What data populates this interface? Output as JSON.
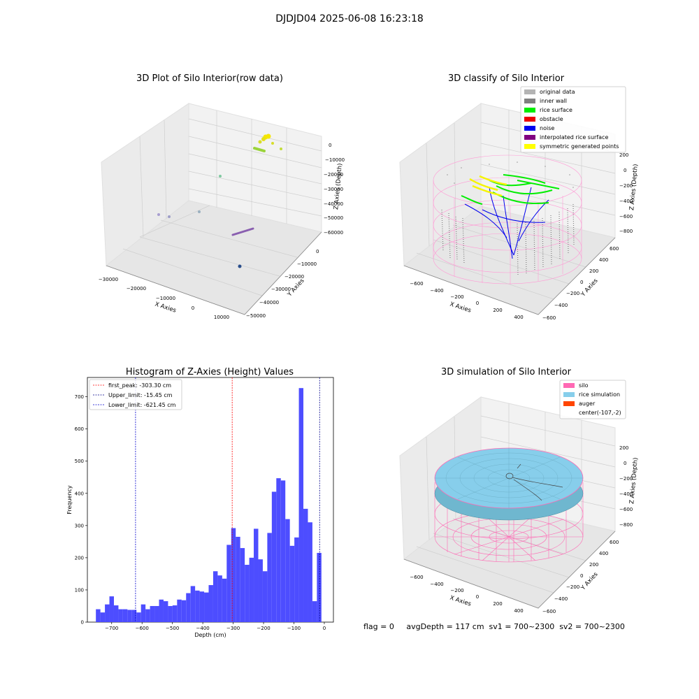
{
  "suptitle": "DJDJD04 2025-06-08 16:23:18",
  "panels": {
    "raw": {
      "title": "3D Plot of Silo Interior(row data)",
      "xlabel": "X Axies",
      "ylabel": "Y Axies",
      "zlabel": "Z Axies (Depth)",
      "xticks": [
        "−30000",
        "−20000",
        "−10000",
        "0",
        "10000"
      ],
      "yticks": [
        "0",
        "−10000",
        "−20000",
        "−30000",
        "−40000",
        "−50000"
      ],
      "zticks": [
        "0",
        "−10000",
        "−20000",
        "−30000",
        "−40000",
        "−50000",
        "−60000"
      ]
    },
    "classify": {
      "title": "3D classify of Silo Interior",
      "xlabel": "X Axies",
      "ylabel": "Y Axies",
      "zlabel": "Z Axies (Depth)",
      "xticks": [
        "−600",
        "−400",
        "−200",
        "0",
        "200",
        "400"
      ],
      "yticks": [
        "600",
        "400",
        "200",
        "0",
        "−200",
        "−400",
        "−600"
      ],
      "zticks": [
        "200",
        "0",
        "−200",
        "−400",
        "−600",
        "−800"
      ],
      "legend": [
        {
          "label": "original data",
          "color": "#b4b4b4"
        },
        {
          "label": "inner wall",
          "color": "#808080"
        },
        {
          "label": "rice surface",
          "color": "#00ee00"
        },
        {
          "label": "obstacle",
          "color": "#ee0000"
        },
        {
          "label": "noise",
          "color": "#0000ee"
        },
        {
          "label": "interpolated rice surface",
          "color": "#800080"
        },
        {
          "label": "symmetric generated points",
          "color": "#ffff00"
        }
      ]
    },
    "histogram": {
      "title": "Histogram of Z-Axies (Height) Values",
      "xlabel": "Depth (cm)",
      "ylabel": "Frequency",
      "legend": [
        {
          "label": "first_peak: -303.30 cm",
          "color": "#ff0000"
        },
        {
          "label": "Upper_limit: -15.45 cm",
          "color": "#00008b"
        },
        {
          "label": "Lower_limit: -621.45 cm",
          "color": "#0000cd"
        }
      ]
    },
    "simulation": {
      "title": "3D simulation of Silo Interior",
      "xlabel": "X Axies",
      "ylabel": "Y Axies",
      "zlabel": "Z Axies (Depth)",
      "xticks": [
        "−600",
        "−400",
        "−200",
        "0",
        "200",
        "400"
      ],
      "yticks": [
        "600",
        "400",
        "200",
        "0",
        "−200",
        "−400",
        "−600"
      ],
      "zticks": [
        "200",
        "0",
        "−200",
        "−400",
        "−600",
        "−800"
      ],
      "legend": [
        {
          "label": "silo",
          "color": "#ff69b4"
        },
        {
          "label": "rice simulation",
          "color": "#87ceeb"
        },
        {
          "label": "auger",
          "color": "#ff4500"
        },
        {
          "label": "center(-107,-2)",
          "color": ""
        }
      ],
      "status_text": "flag = 0     avgDepth = 117 cm  sv1 = 700~2300  sv2 = 700~2300"
    }
  },
  "chart_data": {
    "type": "bar",
    "title": "Histogram of Z-Axies (Height) Values",
    "xlabel": "Depth (cm)",
    "ylabel": "Frequency",
    "xlim": [
      -780,
      30
    ],
    "ylim": [
      0,
      760
    ],
    "xticks": [
      -700,
      -600,
      -500,
      -400,
      -300,
      -200,
      -100,
      0
    ],
    "yticks": [
      0,
      100,
      200,
      300,
      400,
      500,
      600,
      700
    ],
    "bin_start": -752,
    "bin_width": 14.85,
    "values": [
      40,
      30,
      55,
      80,
      52,
      40,
      40,
      38,
      38,
      30,
      55,
      40,
      50,
      50,
      70,
      65,
      50,
      52,
      70,
      68,
      90,
      112,
      98,
      95,
      92,
      115,
      158,
      145,
      135,
      240,
      292,
      265,
      230,
      178,
      200,
      290,
      195,
      158,
      277,
      405,
      447,
      440,
      320,
      237,
      263,
      727,
      352,
      310,
      65,
      215
    ],
    "reference_lines": [
      {
        "name": "first_peak: -303.30 cm",
        "x": -303.3,
        "color": "#ff0000"
      },
      {
        "name": "Upper_limit: -15.45 cm",
        "x": -15.45,
        "color": "#00008b"
      },
      {
        "name": "Lower_limit: -621.45 cm",
        "x": -621.45,
        "color": "#0000cd"
      }
    ],
    "bar_color": "#4d4dff",
    "legend_position": "upper left",
    "grid": false
  }
}
